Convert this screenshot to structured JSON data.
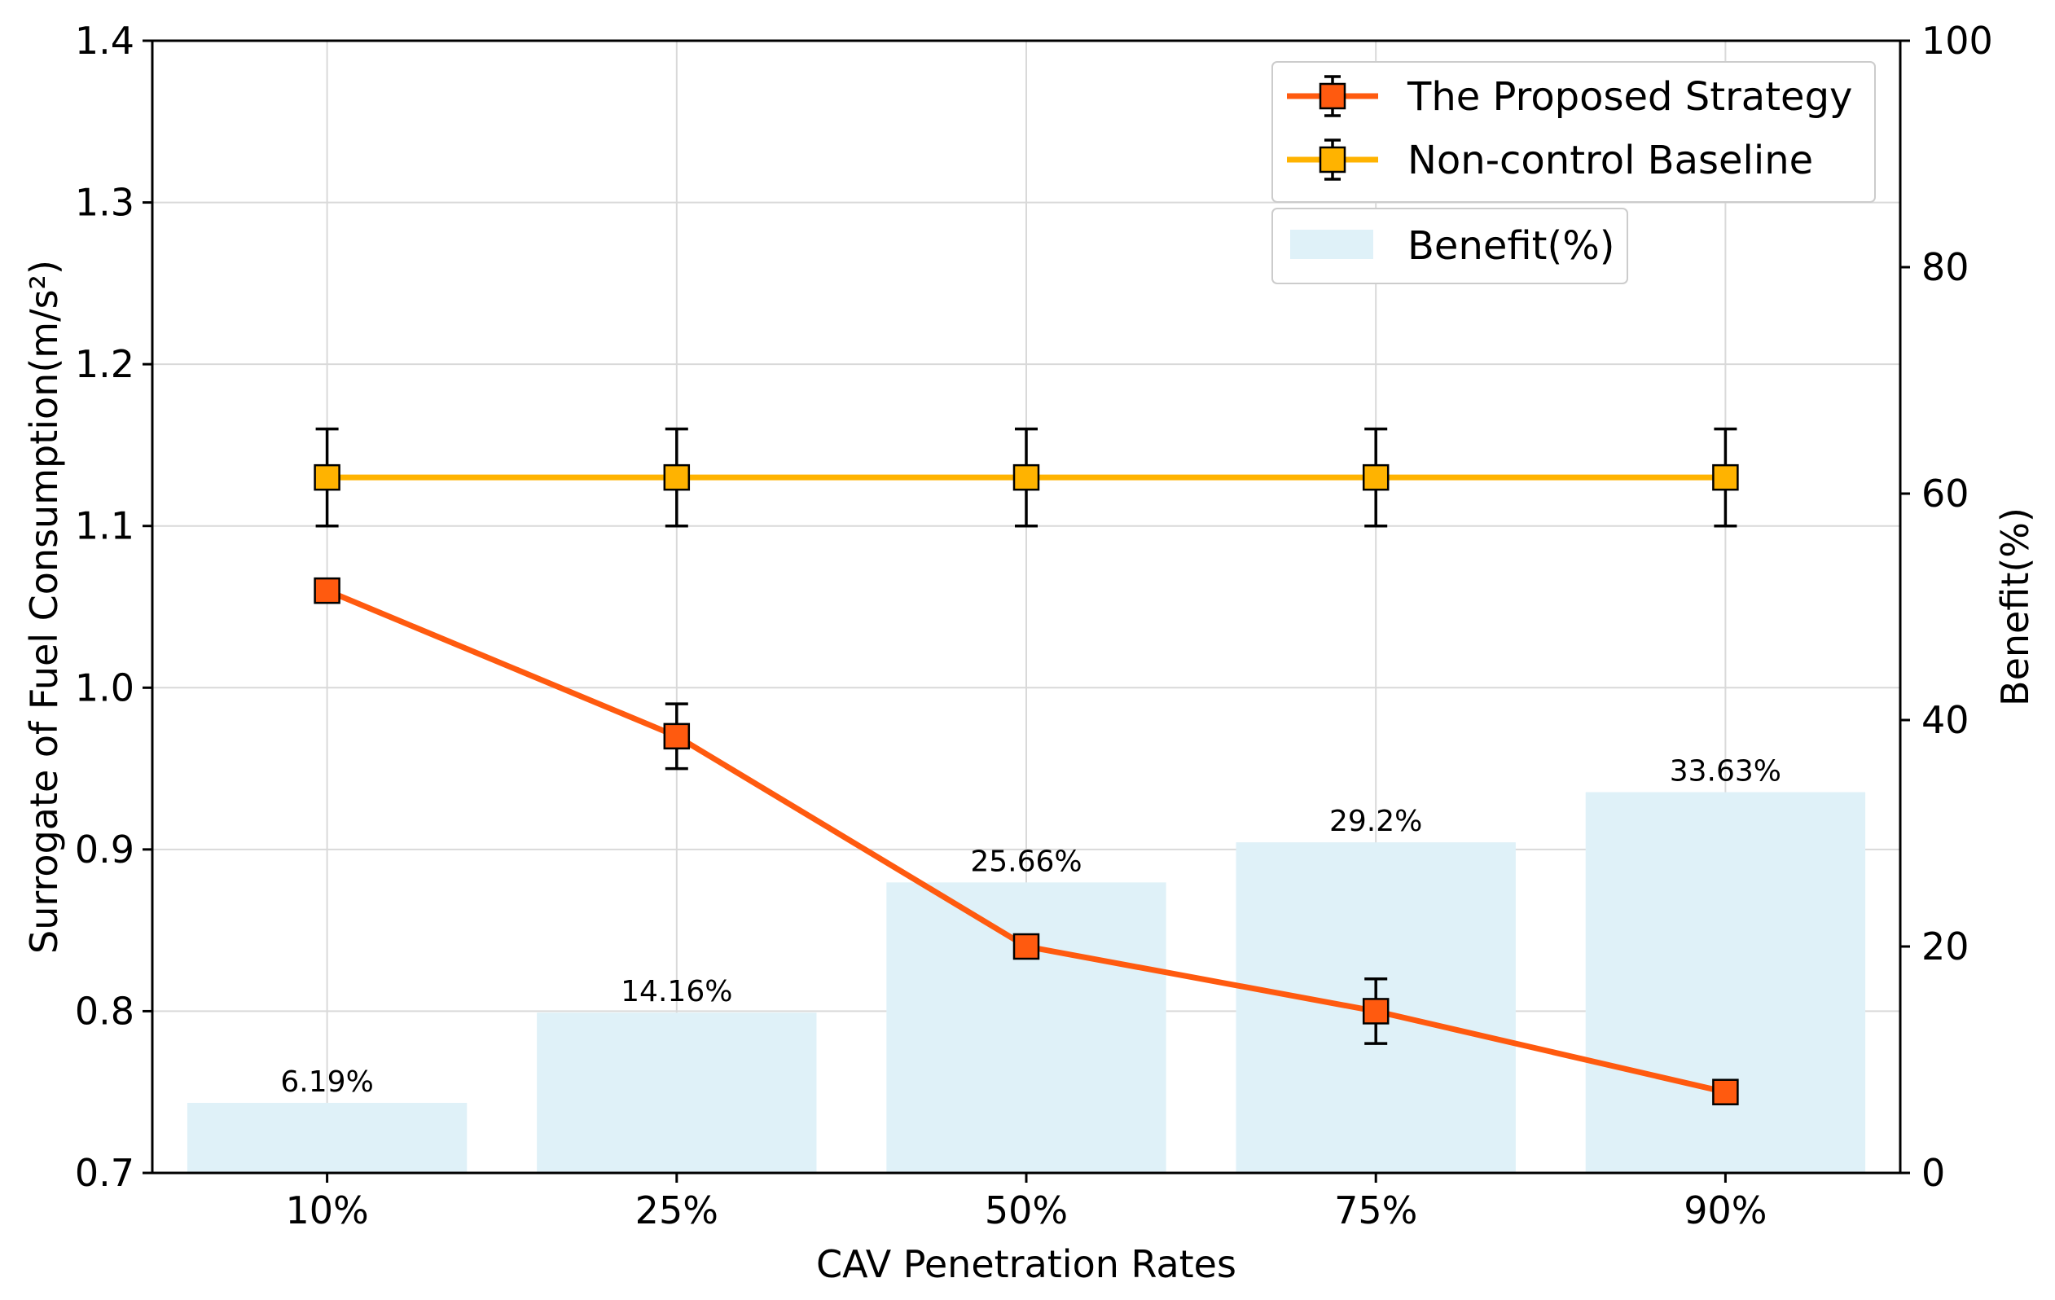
{
  "chart_data": {
    "type": "bar",
    "categories": [
      "10%",
      "25%",
      "50%",
      "75%",
      "90%"
    ],
    "xlabel": "CAV Penetration Rates",
    "ylabel_left": "Surrogate of Fuel Consumption(m/s²)",
    "ylabel_right": "Benefit(%)",
    "ylim_left": [
      0.7,
      1.4
    ],
    "ylim_right": [
      0,
      100
    ],
    "yticks_left": [
      "0.7",
      "0.8",
      "0.9",
      "1.0",
      "1.1",
      "1.2",
      "1.3",
      "1.4"
    ],
    "yticks_right": [
      "0",
      "20",
      "40",
      "60",
      "80",
      "100"
    ],
    "grid": true,
    "legend_position": "top-right",
    "line_series": [
      {
        "name": "The Proposed Strategy",
        "color": "#ff5a0f",
        "values": [
          1.06,
          0.97,
          0.84,
          0.8,
          0.75
        ],
        "errors": [
          0.007,
          0.02,
          0.007,
          0.02,
          0.007
        ]
      },
      {
        "name": "Non-control Baseline",
        "color": "#ffb300",
        "values": [
          1.13,
          1.13,
          1.13,
          1.13,
          1.13
        ],
        "errors": [
          0.03,
          0.03,
          0.03,
          0.03,
          0.03
        ]
      }
    ],
    "bar_series": {
      "name": "Benefit(%)",
      "color": "#dff1f8",
      "values": [
        6.19,
        14.16,
        25.66,
        29.2,
        33.63
      ],
      "labels": [
        "6.19%",
        "14.16%",
        "25.66%",
        "29.2%",
        "33.63%"
      ]
    }
  }
}
